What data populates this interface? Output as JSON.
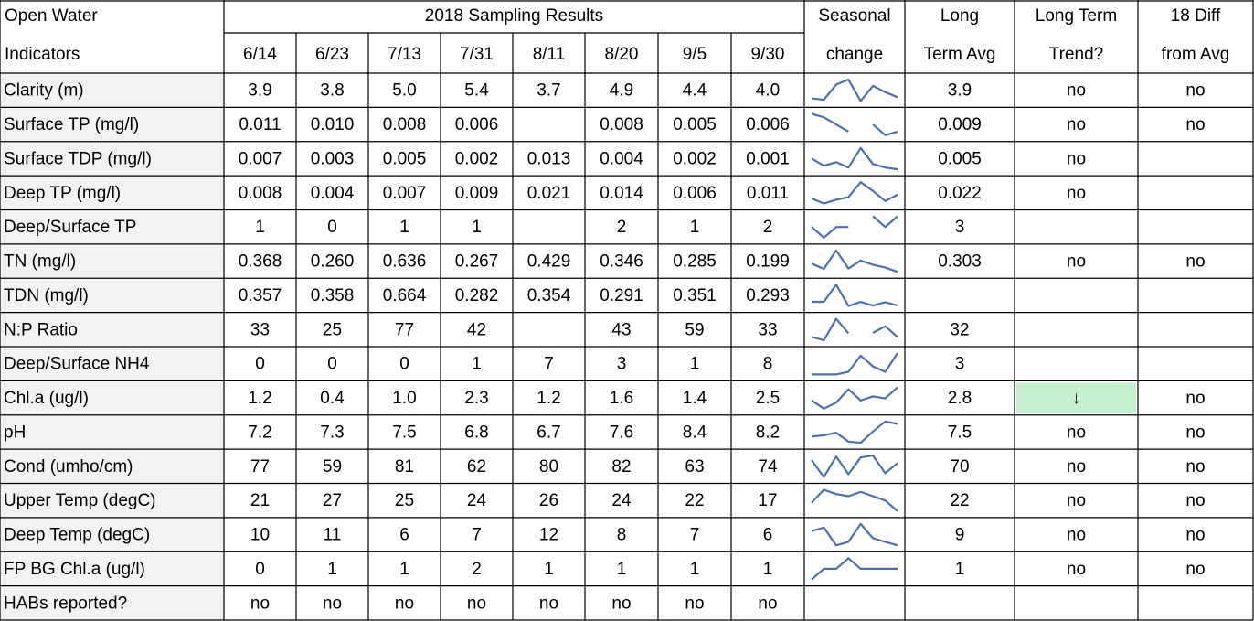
{
  "header": {
    "corner": [
      "Open Water",
      "Indicators"
    ],
    "group": "2018 Sampling Results",
    "dates": [
      "6/14",
      "6/23",
      "7/13",
      "7/31",
      "8/11",
      "8/20",
      "9/5",
      "9/30"
    ],
    "columns": [
      [
        "Seasonal",
        "change"
      ],
      [
        "Long",
        "Term Avg"
      ],
      [
        "Long Term",
        "Trend?"
      ],
      [
        "18 Diff",
        "from Avg"
      ]
    ]
  },
  "table": {
    "sparkline_color": "#4a72b0",
    "label_background": "#f2f2f2",
    "rows": [
      {
        "label": "Clarity (m)",
        "results": [
          "3.9",
          "3.8",
          "5.0",
          "5.4",
          "3.7",
          "4.9",
          "4.4",
          "4.0"
        ],
        "avg": "3.9",
        "trend": "no",
        "diff": "no"
      },
      {
        "label": "Surface TP (mg/l)",
        "results": [
          "0.011",
          "0.010",
          "0.008",
          "0.006",
          null,
          "0.008",
          "0.005",
          "0.006"
        ],
        "avg": "0.009",
        "trend": "no",
        "diff": "no"
      },
      {
        "label": "Surface TDP (mg/l)",
        "results": [
          "0.007",
          "0.003",
          "0.005",
          "0.002",
          "0.013",
          "0.004",
          "0.002",
          "0.001"
        ],
        "avg": "0.005",
        "trend": "no",
        "diff": null
      },
      {
        "label": "Deep TP (mg/l)",
        "results": [
          "0.008",
          "0.004",
          "0.007",
          "0.009",
          "0.021",
          "0.014",
          "0.006",
          "0.011"
        ],
        "avg": "0.022",
        "trend": "no",
        "diff": null
      },
      {
        "label": "Deep/Surface TP",
        "results": [
          "1",
          "0",
          "1",
          "1",
          null,
          "2",
          "1",
          "2"
        ],
        "avg": "3",
        "trend": null,
        "diff": null
      },
      {
        "label": "TN (mg/l)",
        "results": [
          "0.368",
          "0.260",
          "0.636",
          "0.267",
          "0.429",
          "0.346",
          "0.285",
          "0.199"
        ],
        "avg": "0.303",
        "trend": "no",
        "diff": "no"
      },
      {
        "label": "TDN (mg/l)",
        "results": [
          "0.357",
          "0.358",
          "0.664",
          "0.282",
          "0.354",
          "0.291",
          "0.351",
          "0.293"
        ],
        "avg": null,
        "trend": null,
        "diff": null
      },
      {
        "label": "N:P Ratio",
        "results": [
          "33",
          "25",
          "77",
          "42",
          null,
          "43",
          "59",
          "33"
        ],
        "avg": "32",
        "trend": null,
        "diff": null
      },
      {
        "label": "Deep/Surface NH4",
        "results": [
          "0",
          "0",
          "0",
          "1",
          "7",
          "3",
          "1",
          "8"
        ],
        "avg": "3",
        "trend": null,
        "diff": null
      },
      {
        "label": "Chl.a (ug/l)",
        "results": [
          "1.2",
          "0.4",
          "1.0",
          "2.3",
          "1.2",
          "1.6",
          "1.4",
          "2.5"
        ],
        "avg": "2.8",
        "trend": "↓",
        "trend_color": "#c6efce",
        "trend_text_color": "#006100",
        "diff": "no"
      },
      {
        "label": "pH",
        "results": [
          "7.2",
          "7.3",
          "7.5",
          "6.8",
          "6.7",
          "7.6",
          "8.4",
          "8.2"
        ],
        "avg": "7.5",
        "trend": "no",
        "diff": "no"
      },
      {
        "label": "Cond (umho/cm)",
        "results": [
          "77",
          "59",
          "81",
          "62",
          "80",
          "82",
          "63",
          "74"
        ],
        "avg": "70",
        "trend": "no",
        "diff": "no"
      },
      {
        "label": "Upper Temp (degC)",
        "results": [
          "21",
          "27",
          "25",
          "24",
          "26",
          "24",
          "22",
          "17"
        ],
        "avg": "22",
        "trend": "no",
        "diff": "no"
      },
      {
        "label": "Deep Temp (degC)",
        "results": [
          "10",
          "11",
          "6",
          "7",
          "12",
          "8",
          "7",
          "6"
        ],
        "avg": "9",
        "trend": "no",
        "diff": "no"
      },
      {
        "label": "FP BG Chl.a (ug/l)",
        "results": [
          "0",
          "1",
          "1",
          "2",
          "1",
          "1",
          "1",
          "1"
        ],
        "avg": "1",
        "trend": "no",
        "diff": "no"
      },
      {
        "label": "HABs reported?",
        "results": [
          "no",
          "no",
          "no",
          "no",
          "no",
          "no",
          "no",
          "no"
        ],
        "avg": null,
        "trend": null,
        "diff": null
      }
    ]
  }
}
